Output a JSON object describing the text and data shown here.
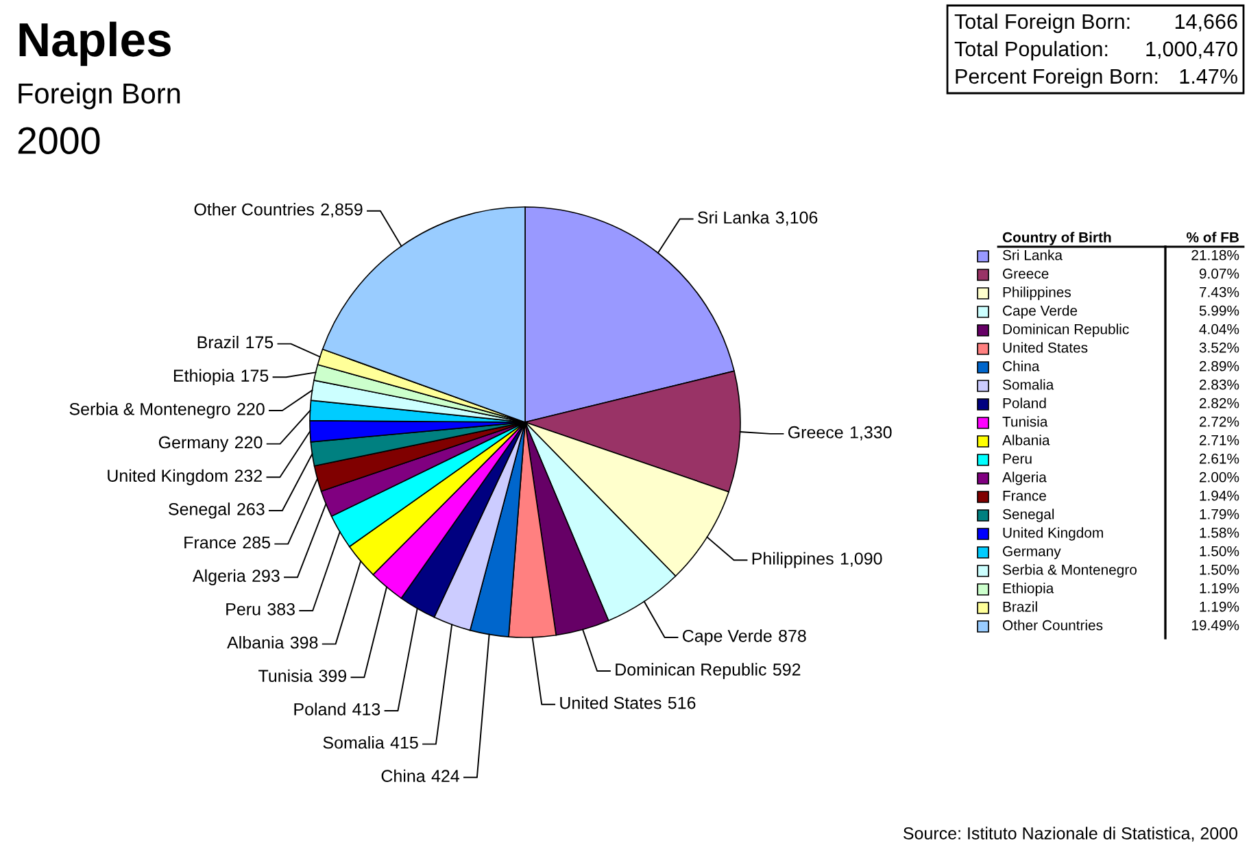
{
  "chart_data": {
    "type": "pie",
    "title": "Naples",
    "subtitle": "Foreign Born",
    "legend_title": "Country of Birth",
    "legend": "right",
    "value_labels": [
      "3,106",
      "1,330",
      "1,090",
      "878",
      "592",
      "516",
      "424",
      "415",
      "413",
      "399",
      "398",
      "383",
      "293",
      "285",
      "263",
      "232",
      "220",
      "220",
      "175",
      "175",
      "2,859"
    ],
    "categories": [
      "Sri Lanka",
      "Greece",
      "Philippines",
      "Cape Verde",
      "Dominican Republic",
      "United States",
      "China",
      "Somalia",
      "Poland",
      "Tunisia",
      "Albania",
      "Peru",
      "Algeria",
      "France",
      "Senegal",
      "United Kingdom",
      "Germany",
      "Serbia & Montenegro",
      "Ethiopia",
      "Brazil",
      "Other Countries"
    ],
    "values": [
      3106,
      1330,
      1090,
      878,
      592,
      516,
      424,
      415,
      413,
      399,
      398,
      383,
      293,
      285,
      263,
      232,
      220,
      220,
      175,
      175,
      2859
    ],
    "colors": [
      "#9999ff",
      "#993366",
      "#ffffcc",
      "#ccffff",
      "#660066",
      "#ff8080",
      "#0066cc",
      "#ccccff",
      "#000080",
      "#ff00ff",
      "#ffff00",
      "#00ffff",
      "#800080",
      "#800000",
      "#008080",
      "#0000ff",
      "#00ccff",
      "#ccffff",
      "#ccffcc",
      "#ffff99",
      "#99ccff"
    ],
    "annotations": [
      "2000",
      "Total Foreign Born: 14,666",
      "Total Population: 1,000,470",
      "Percent Foreign Born: 1.47%",
      "Source: Istituto Nazionale di Statistica, 2000",
      "% of FB",
      "21.18%",
      "9.07%",
      "7.43%",
      "5.99%",
      "4.04%",
      "3.52%",
      "2.89%",
      "2.83%",
      "2.82%",
      "2.72%",
      "2.71%",
      "2.61%",
      "2.00%",
      "1.94%",
      "1.79%",
      "1.58%",
      "1.50%",
      "1.50%",
      "1.19%",
      "1.19%",
      "19.49%"
    ]
  }
}
